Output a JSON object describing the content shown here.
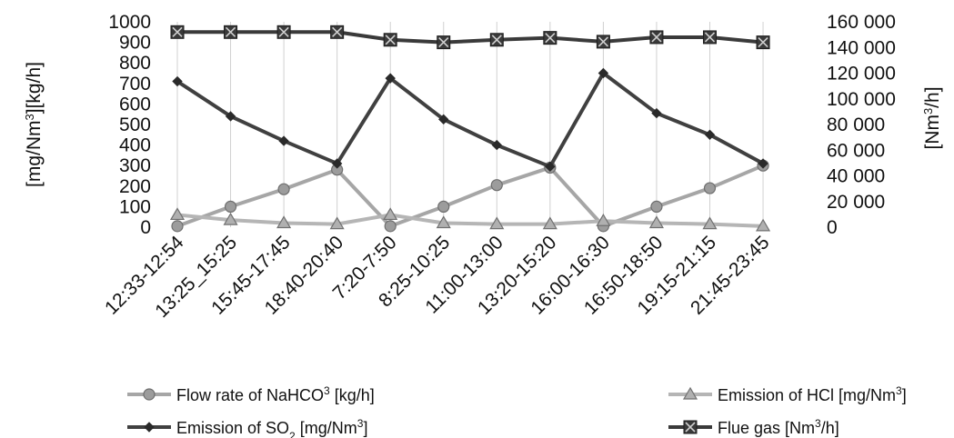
{
  "chart_data": {
    "type": "line",
    "categories": [
      "12:33-12:54",
      "13:25_15:25",
      "15:45-17:45",
      "18:40-20:40",
      "7:20-7:50",
      "8:25-10:25",
      "11:00-13:00",
      "13:20-15:20",
      "16:00-16:30",
      "16:50-18:50",
      "19:15-21:15",
      "21:45-23:45"
    ],
    "y_left": {
      "label_parts": [
        "[mg/Nm",
        "3",
        "][kg/h]"
      ],
      "lim": [
        0,
        1000
      ],
      "ticks": [
        "0",
        "100",
        "200",
        "300",
        "400",
        "500",
        "600",
        "700",
        "800",
        "900",
        "1000"
      ]
    },
    "y_right": {
      "label_parts": [
        "[Nm",
        "3",
        "/h]"
      ],
      "lim": [
        0,
        160000
      ],
      "ticks": [
        "0",
        "20 000",
        "40 000",
        "60 000",
        "80 000",
        "100 000",
        "120 000",
        "140 000",
        "160 000"
      ]
    },
    "grid": "vertical",
    "legend_position": "bottom",
    "series": [
      {
        "name_parts": [
          "Flow rate  of  NaHCO",
          "3",
          " [kg/h]"
        ],
        "axis": "left",
        "marker": "circle",
        "color": "#a6a6a6",
        "values": [
          5,
          100,
          185,
          280,
          5,
          100,
          205,
          290,
          5,
          100,
          190,
          300
        ]
      },
      {
        "name_parts": [
          "Emission of  HCl [mg/Nm",
          "3",
          "]"
        ],
        "axis": "left",
        "marker": "triangle",
        "color": "#b5b5b5",
        "values": [
          60,
          35,
          20,
          15,
          60,
          20,
          15,
          15,
          30,
          20,
          15,
          5
        ]
      },
      {
        "name_parts": [
          "Emission of SO",
          "2",
          " [mg/Nm",
          "3",
          "]"
        ],
        "axis": "left",
        "marker": "diamond",
        "color": "#404040",
        "values": [
          710,
          540,
          420,
          310,
          725,
          525,
          400,
          295,
          750,
          555,
          450,
          310
        ]
      },
      {
        "name_parts": [
          "Flue gas [Nm",
          "3",
          "/h]"
        ],
        "axis": "right",
        "marker": "square-x",
        "color": "#3a3a3a",
        "values": [
          152000,
          152000,
          152000,
          152000,
          146000,
          144000,
          146000,
          147500,
          144500,
          148000,
          148000,
          144000
        ]
      }
    ]
  }
}
